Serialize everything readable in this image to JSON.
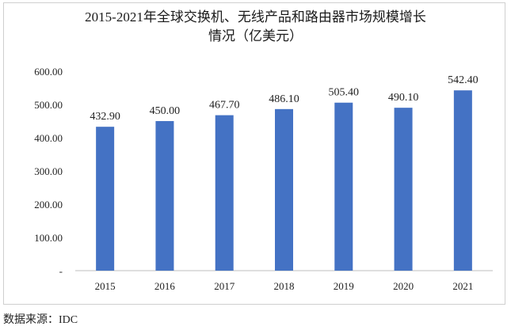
{
  "chart_data": {
    "type": "bar",
    "title_line1": "2015-2021年全球交换机、无线产品和路由器市场规模增长",
    "title_line2": "情况（亿美元）",
    "categories": [
      "2015",
      "2016",
      "2017",
      "2018",
      "2019",
      "2020",
      "2021"
    ],
    "values": [
      432.9,
      450.0,
      467.7,
      486.1,
      505.4,
      490.1,
      542.4
    ],
    "data_labels": [
      "432.90",
      "450.00",
      "467.70",
      "486.10",
      "505.40",
      "490.10",
      "542.40"
    ],
    "ylim": [
      0,
      600
    ],
    "y_ticks": [
      0,
      100,
      200,
      300,
      400,
      500,
      600
    ],
    "y_tick_labels": [
      "-",
      "100.00",
      "200.00",
      "300.00",
      "400.00",
      "500.00",
      "600.00"
    ],
    "grid": false,
    "legend": "none",
    "bar_color": "#4472C4"
  },
  "source_note": "数据来源：IDC"
}
